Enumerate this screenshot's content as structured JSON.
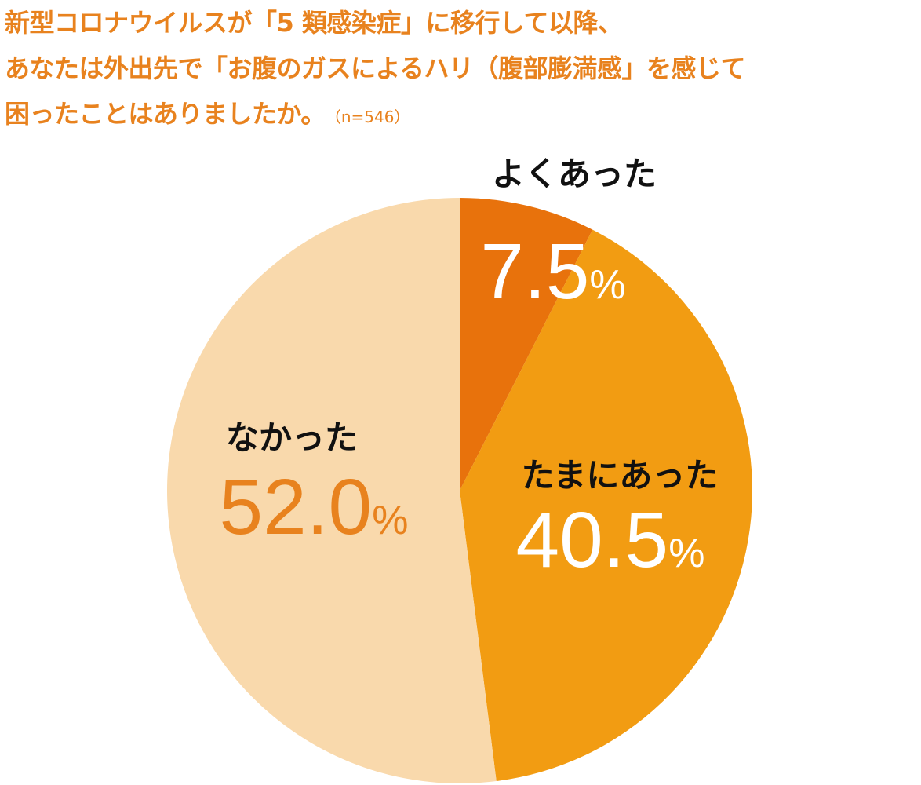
{
  "title": {
    "line1": "新型コロナウイルスが「5 類感染症」に移行して以降、",
    "line2": "あなたは外出先で「お腹のガスによるハリ（腹部膨満感」を感じて",
    "line3": "困ったことはありましたか。",
    "sample_note": "（n=546）"
  },
  "chart_data": {
    "type": "pie",
    "title": "新型コロナウイルスが「5 類感染症」に移行して以降、あなたは外出先で「お腹のガスによるハリ（腹部膨満感」を感じて困ったことはありましたか。",
    "sample_size": "n=546",
    "start": "12 o'clock, clockwise",
    "slices": [
      {
        "label": "よくあった",
        "value": 7.5,
        "value_text": "7.5",
        "unit": "%",
        "color": "#e8720c",
        "label_color": "#111111",
        "value_color": "#ffffff"
      },
      {
        "label": "たまにあった",
        "value": 40.5,
        "value_text": "40.5",
        "unit": "%",
        "color": "#f29c12",
        "label_color": "#111111",
        "value_color": "#ffffff"
      },
      {
        "label": "なかった",
        "value": 52.0,
        "value_text": "52.0",
        "unit": "%",
        "color": "#f9d9ac",
        "label_color": "#111111",
        "value_color": "#e8821e"
      }
    ]
  }
}
